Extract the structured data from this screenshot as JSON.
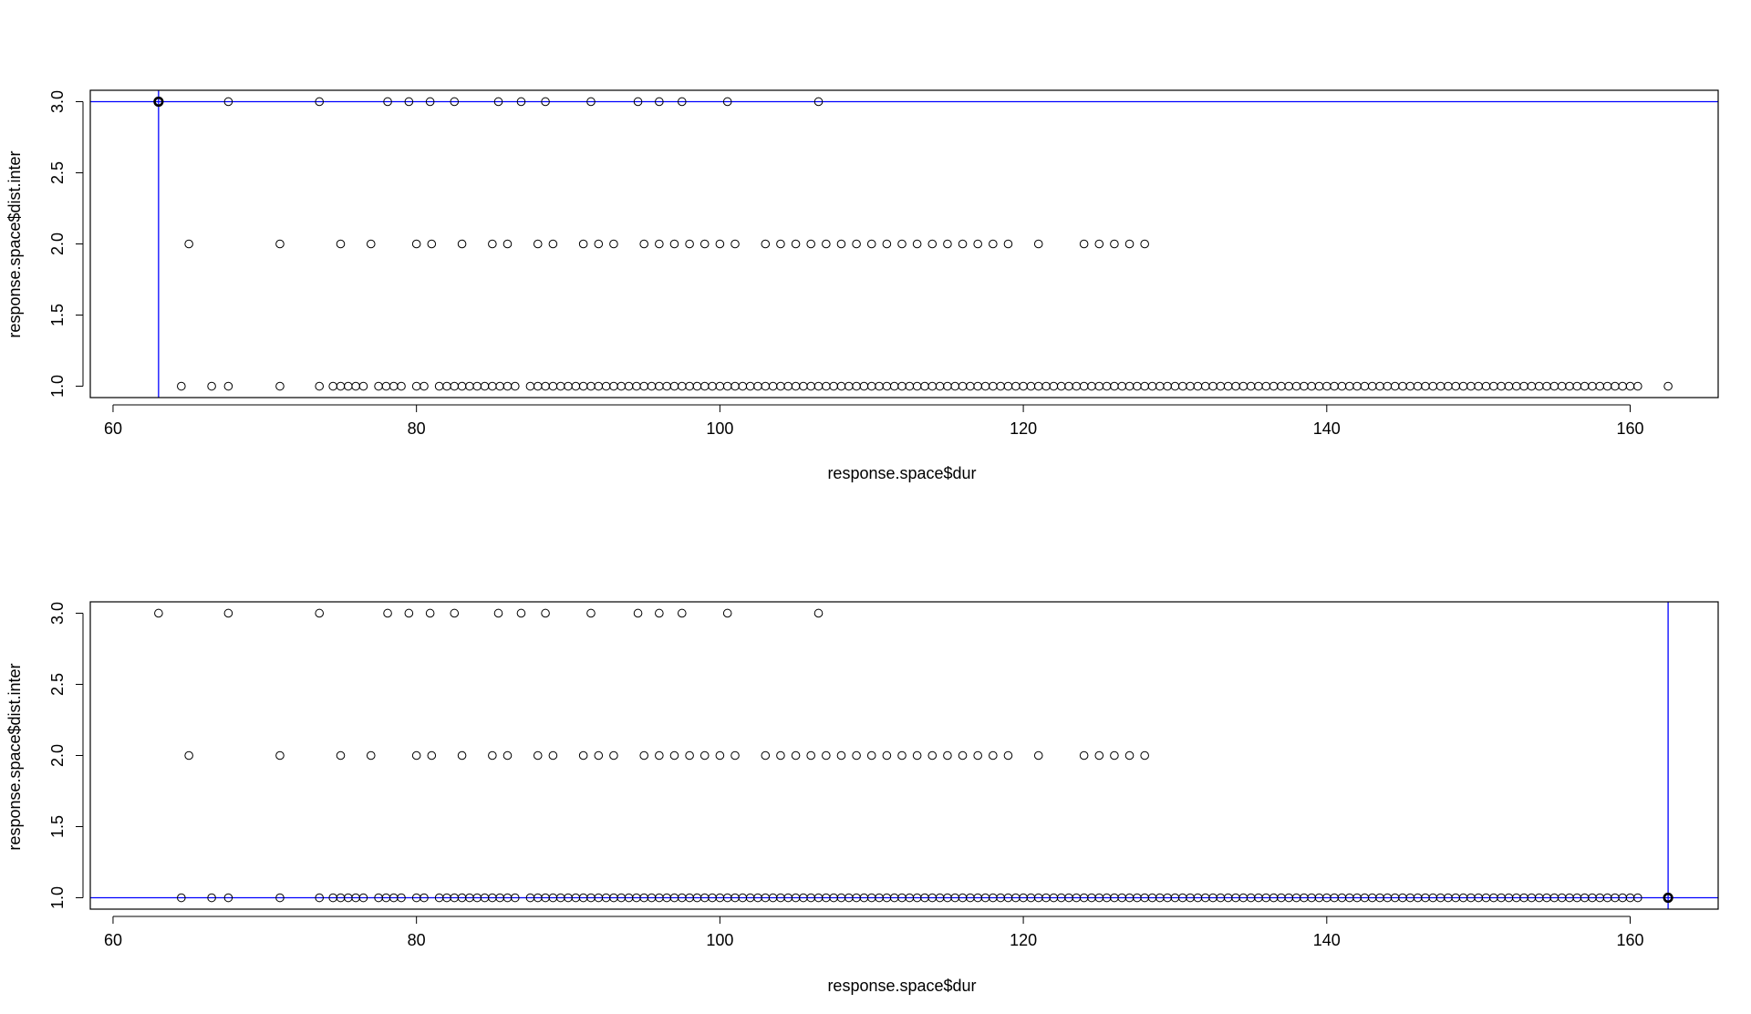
{
  "chart_data": [
    {
      "type": "scatter",
      "title": "",
      "xlabel": "response.space$dur",
      "ylabel": "response.space$dist.inter",
      "xlim": [
        58.5,
        165.8
      ],
      "ylim": [
        0.92,
        3.08
      ],
      "xticks": [
        "60",
        "80",
        "100",
        "120",
        "140",
        "160"
      ],
      "yticks": [
        "1.0",
        "1.5",
        "2.0",
        "2.5",
        "3.0"
      ],
      "grid": false,
      "legend": "none",
      "highlight": {
        "x": 63,
        "y": 3
      },
      "reference_lines": {
        "vertical_x": 63,
        "horizontal_y": 3,
        "color": "#0000FF"
      },
      "series": [
        {
          "y": 3,
          "x": [
            63,
            67.6,
            73.6,
            78.1,
            79.5,
            80.9,
            82.5,
            85.4,
            86.9,
            88.5,
            91.5,
            94.6,
            96,
            97.5,
            100.5,
            106.5
          ]
        },
        {
          "y": 2,
          "x": [
            65,
            71,
            75,
            77,
            80,
            81,
            83,
            85,
            86,
            88,
            89,
            91,
            92,
            93,
            95,
            96,
            97,
            98,
            99,
            100,
            101,
            103,
            104,
            105,
            106,
            107,
            108,
            109,
            110,
            111,
            112,
            113,
            114,
            115,
            116,
            117,
            118,
            119,
            121,
            124,
            125,
            126,
            127,
            128
          ]
        },
        {
          "y": 1,
          "x": [
            64.5,
            66.5,
            67.6,
            71,
            73.6,
            74.5,
            75,
            75.5,
            76,
            76.5,
            77.5,
            78,
            78.5,
            79,
            80,
            80.5,
            81.5,
            82,
            82.5,
            83,
            83.5,
            84,
            84.5,
            85,
            85.5,
            86,
            86.5,
            87.5,
            88,
            88.5,
            89,
            89.5,
            90,
            90.5,
            91,
            91.5,
            92,
            92.5,
            93,
            93.5,
            94,
            94.5,
            95,
            95.5,
            96,
            96.5,
            97,
            97.5,
            98,
            98.5,
            99,
            99.5,
            100,
            100.5,
            101,
            101.5,
            102,
            102.5,
            103,
            103.5,
            104,
            104.5,
            105,
            105.5,
            106,
            106.5,
            107,
            107.5,
            108,
            108.5,
            109,
            109.5,
            110,
            110.5,
            111,
            111.5,
            112,
            112.5,
            113,
            113.5,
            114,
            114.5,
            115,
            115.5,
            116,
            116.5,
            117,
            117.5,
            118,
            118.5,
            119,
            119.5,
            120,
            120.5,
            121,
            121.5,
            122,
            122.5,
            123,
            123.5,
            124,
            124.5,
            125,
            125.5,
            126,
            126.5,
            127,
            127.5,
            128,
            128.5,
            129,
            129.5,
            130,
            130.5,
            131,
            131.5,
            132,
            132.5,
            133,
            133.5,
            134,
            134.5,
            135,
            135.5,
            136,
            136.5,
            137,
            137.5,
            138,
            138.5,
            139,
            139.5,
            140,
            140.5,
            141,
            141.5,
            142,
            142.5,
            143,
            143.5,
            144,
            144.5,
            145,
            145.5,
            146,
            146.5,
            147,
            147.5,
            148,
            148.5,
            149,
            149.5,
            150,
            150.5,
            151,
            151.5,
            152,
            152.5,
            153,
            153.5,
            154,
            154.5,
            155,
            155.5,
            156,
            156.5,
            157,
            157.5,
            158,
            158.5,
            159,
            159.5,
            160,
            160.5,
            162.5
          ]
        }
      ]
    },
    {
      "type": "scatter",
      "title": "",
      "xlabel": "response.space$dur",
      "ylabel": "response.space$dist.inter",
      "xlim": [
        58.5,
        165.8
      ],
      "ylim": [
        0.92,
        3.08
      ],
      "xticks": [
        "60",
        "80",
        "100",
        "120",
        "140",
        "160"
      ],
      "yticks": [
        "1.0",
        "1.5",
        "2.0",
        "2.5",
        "3.0"
      ],
      "grid": false,
      "legend": "none",
      "highlight": {
        "x": 162.5,
        "y": 1
      },
      "reference_lines": {
        "vertical_x": 162.5,
        "horizontal_y": 1,
        "color": "#0000FF"
      },
      "series": [
        {
          "y": 3,
          "x": [
            63,
            67.6,
            73.6,
            78.1,
            79.5,
            80.9,
            82.5,
            85.4,
            86.9,
            88.5,
            91.5,
            94.6,
            96,
            97.5,
            100.5,
            106.5
          ]
        },
        {
          "y": 2,
          "x": [
            65,
            71,
            75,
            77,
            80,
            81,
            83,
            85,
            86,
            88,
            89,
            91,
            92,
            93,
            95,
            96,
            97,
            98,
            99,
            100,
            101,
            103,
            104,
            105,
            106,
            107,
            108,
            109,
            110,
            111,
            112,
            113,
            114,
            115,
            116,
            117,
            118,
            119,
            121,
            124,
            125,
            126,
            127,
            128
          ]
        },
        {
          "y": 1,
          "x": [
            64.5,
            66.5,
            67.6,
            71,
            73.6,
            74.5,
            75,
            75.5,
            76,
            76.5,
            77.5,
            78,
            78.5,
            79,
            80,
            80.5,
            81.5,
            82,
            82.5,
            83,
            83.5,
            84,
            84.5,
            85,
            85.5,
            86,
            86.5,
            87.5,
            88,
            88.5,
            89,
            89.5,
            90,
            90.5,
            91,
            91.5,
            92,
            92.5,
            93,
            93.5,
            94,
            94.5,
            95,
            95.5,
            96,
            96.5,
            97,
            97.5,
            98,
            98.5,
            99,
            99.5,
            100,
            100.5,
            101,
            101.5,
            102,
            102.5,
            103,
            103.5,
            104,
            104.5,
            105,
            105.5,
            106,
            106.5,
            107,
            107.5,
            108,
            108.5,
            109,
            109.5,
            110,
            110.5,
            111,
            111.5,
            112,
            112.5,
            113,
            113.5,
            114,
            114.5,
            115,
            115.5,
            116,
            116.5,
            117,
            117.5,
            118,
            118.5,
            119,
            119.5,
            120,
            120.5,
            121,
            121.5,
            122,
            122.5,
            123,
            123.5,
            124,
            124.5,
            125,
            125.5,
            126,
            126.5,
            127,
            127.5,
            128,
            128.5,
            129,
            129.5,
            130,
            130.5,
            131,
            131.5,
            132,
            132.5,
            133,
            133.5,
            134,
            134.5,
            135,
            135.5,
            136,
            136.5,
            137,
            137.5,
            138,
            138.5,
            139,
            139.5,
            140,
            140.5,
            141,
            141.5,
            142,
            142.5,
            143,
            143.5,
            144,
            144.5,
            145,
            145.5,
            146,
            146.5,
            147,
            147.5,
            148,
            148.5,
            149,
            149.5,
            150,
            150.5,
            151,
            151.5,
            152,
            152.5,
            153,
            153.5,
            154,
            154.5,
            155,
            155.5,
            156,
            156.5,
            157,
            157.5,
            158,
            158.5,
            159,
            159.5,
            160,
            160.5,
            162.5
          ]
        }
      ]
    }
  ]
}
